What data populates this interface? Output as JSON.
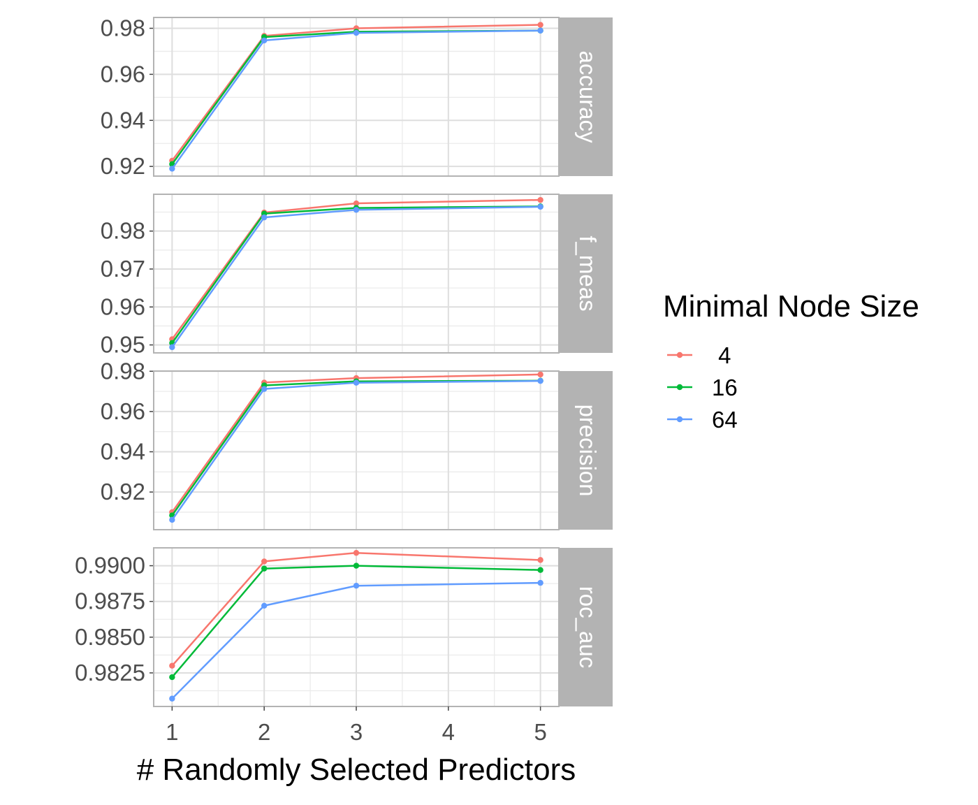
{
  "chart_data": {
    "type": "line",
    "xlabel": "# Randomly Selected Predictors",
    "x_ticks": [
      "1",
      "2",
      "3",
      "4",
      "5"
    ],
    "x": [
      1,
      2,
      3,
      5
    ],
    "xlim": [
      0.8,
      5.2
    ],
    "legend": {
      "title": "Minimal Node Size",
      "placement": "right",
      "entries": [
        " 4",
        "16",
        "64"
      ]
    },
    "colors": {
      "4": "#F8766D",
      "16": "#00BA38",
      "64": "#619CFF"
    },
    "grid": true,
    "facets": [
      {
        "label": "accuracy",
        "ylim": [
          0.9158,
          0.9847
        ],
        "y_ticks": [
          0.92,
          0.94,
          0.96,
          0.98
        ],
        "y_tick_labels": [
          "0.92",
          "0.94",
          "0.96",
          "0.98"
        ],
        "series": [
          {
            "name": " 4",
            "values": [
              0.9225,
              0.9767,
              0.98,
              0.9815
            ]
          },
          {
            "name": "16",
            "values": [
              0.921,
              0.9762,
              0.9785,
              0.979
            ]
          },
          {
            "name": "64",
            "values": [
              0.919,
              0.9747,
              0.978,
              0.979
            ]
          }
        ]
      },
      {
        "label": "f_meas",
        "ylim": [
          0.9479,
          0.9897
        ],
        "y_ticks": [
          0.95,
          0.96,
          0.97,
          0.98
        ],
        "y_tick_labels": [
          "0.95",
          "0.96",
          "0.97",
          "0.98"
        ],
        "series": [
          {
            "name": " 4",
            "values": [
              0.9515,
              0.9849,
              0.9873,
              0.9882
            ]
          },
          {
            "name": "16",
            "values": [
              0.9505,
              0.9846,
              0.9861,
              0.9865
            ]
          },
          {
            "name": "64",
            "values": [
              0.9494,
              0.9836,
              0.9856,
              0.9864
            ]
          }
        ]
      },
      {
        "label": "precision",
        "ylim": [
          0.9013,
          0.9801
        ],
        "y_ticks": [
          0.92,
          0.94,
          0.96,
          0.98
        ],
        "y_tick_labels": [
          "0.92",
          "0.94",
          "0.96",
          "0.98"
        ],
        "series": [
          {
            "name": " 4",
            "values": [
              0.91,
              0.9744,
              0.9766,
              0.9784
            ]
          },
          {
            "name": "16",
            "values": [
              0.9084,
              0.973,
              0.975,
              0.9753
            ]
          },
          {
            "name": "64",
            "values": [
              0.9062,
              0.9712,
              0.9743,
              0.9752
            ]
          }
        ]
      },
      {
        "label": "roc_auc",
        "ylim": [
          0.98015,
          0.99125
        ],
        "y_ticks": [
          0.9825,
          0.985,
          0.9875,
          0.99
        ],
        "y_tick_labels": [
          "0.9825",
          "0.9850",
          "0.9875",
          "0.9900"
        ],
        "series": [
          {
            "name": " 4",
            "values": [
              0.983,
              0.9903,
              0.9909,
              0.9904
            ]
          },
          {
            "name": "16",
            "values": [
              0.9822,
              0.9898,
              0.99,
              0.9897
            ]
          },
          {
            "name": "64",
            "values": [
              0.9807,
              0.9872,
              0.9886,
              0.9888
            ]
          }
        ]
      }
    ]
  }
}
